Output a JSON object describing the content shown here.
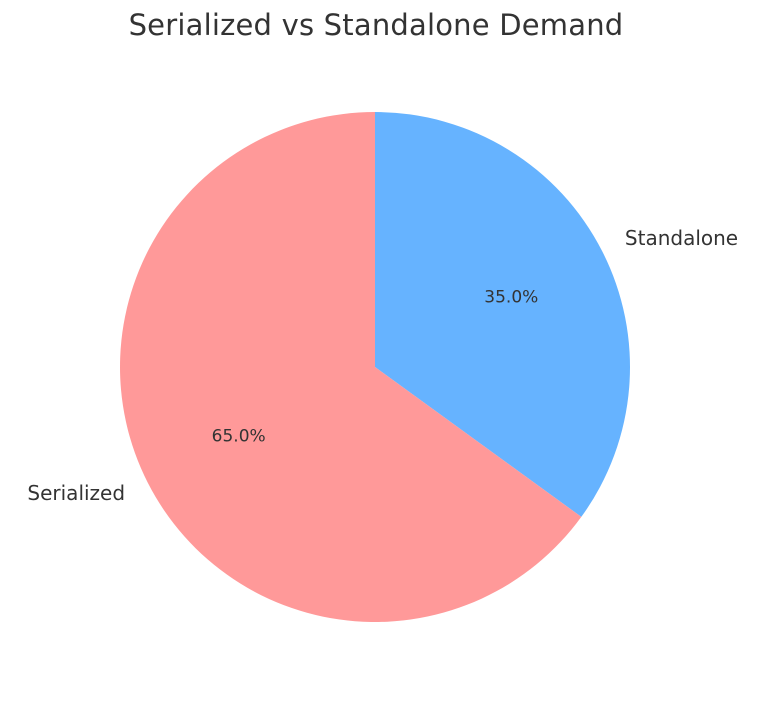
{
  "chart_data": {
    "type": "pie",
    "title": "Serialized vs Standalone Demand",
    "slices": [
      {
        "label": "Standalone",
        "value": 35.0,
        "pct_label": "35.0%",
        "color": "#66b3ff"
      },
      {
        "label": "Serialized",
        "value": 65.0,
        "pct_label": "65.0%",
        "color": "#ff9999"
      }
    ],
    "start": "top",
    "direction": "clockwise",
    "legend": "none"
  }
}
